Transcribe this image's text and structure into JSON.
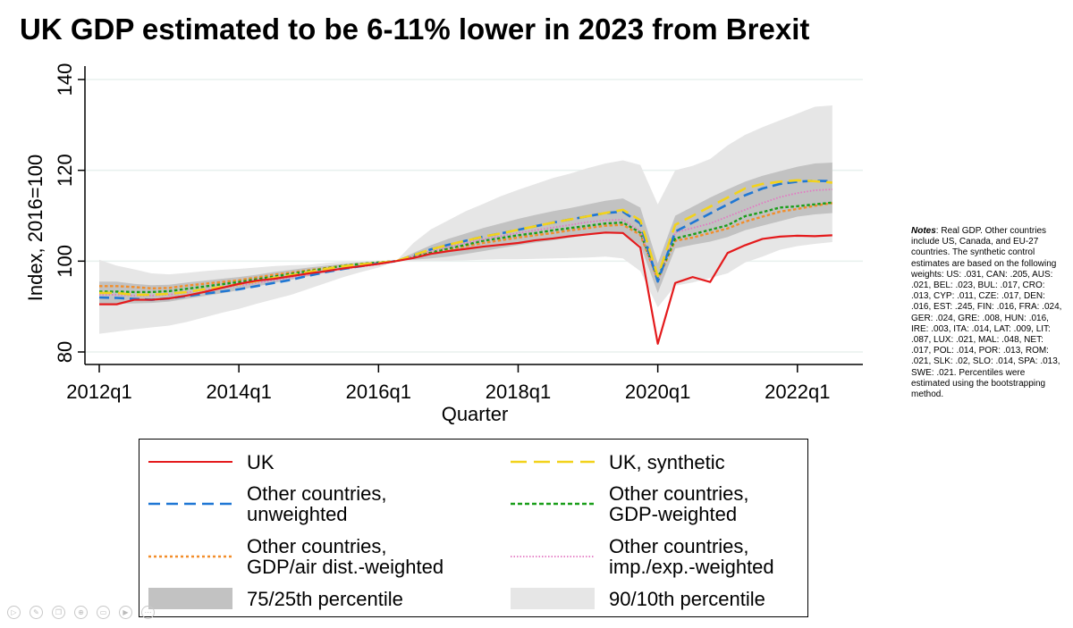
{
  "title": "UK GDP estimated to be 6-11% lower in 2023 from Brexit",
  "chart_data": {
    "type": "line",
    "title": "UK GDP estimated to be 6-11% lower in 2023 from Brexit",
    "xlabel": "Quarter",
    "ylabel": "Index, 2016=100",
    "ylim": [
      80,
      140
    ],
    "yticks": [
      80,
      100,
      120,
      140
    ],
    "xticks": [
      {
        "q": 0,
        "label": "2012q1"
      },
      {
        "q": 8,
        "label": "2014q1"
      },
      {
        "q": 16,
        "label": "2016q1"
      },
      {
        "q": 24,
        "label": "2018q1"
      },
      {
        "q": 32,
        "label": "2020q1"
      },
      {
        "q": 40,
        "label": "2022q1"
      }
    ],
    "grid": true,
    "x_start": "2012q1",
    "x_end": "2022q4",
    "series": [
      {
        "key": "uk",
        "name": "UK",
        "color": "#e41a1c",
        "style": "solid",
        "values": [
          90.5,
          90.5,
          91.5,
          91.5,
          91.8,
          92.4,
          93.2,
          94.1,
          95.0,
          95.7,
          96.1,
          96.7,
          97.3,
          97.8,
          98.4,
          98.9,
          99.4,
          100.0,
          100.7,
          101.6,
          102.2,
          102.7,
          103.2,
          103.6,
          104.0,
          104.6,
          105.0,
          105.5,
          105.9,
          106.3,
          106.2,
          103.0,
          81.8,
          95.2,
          96.5,
          95.4,
          101.8,
          103.5,
          104.9,
          105.4,
          105.6,
          105.5,
          105.7
        ]
      },
      {
        "key": "synthetic",
        "name": "UK, synthetic",
        "color": "#f2d21b",
        "style": "longdash",
        "values": [
          93.0,
          93.0,
          92.6,
          92.6,
          92.8,
          93.2,
          93.8,
          94.3,
          94.9,
          95.6,
          96.3,
          96.9,
          97.6,
          98.3,
          98.9,
          99.3,
          99.6,
          100.0,
          101.3,
          102.6,
          103.6,
          104.5,
          105.4,
          106.1,
          106.9,
          107.7,
          108.5,
          109.2,
          109.9,
          110.6,
          111.3,
          109.0,
          96.7,
          108.0,
          110.0,
          112.0,
          114.0,
          116.0,
          117.0,
          117.5,
          117.8,
          117.6,
          117.3
        ]
      },
      {
        "key": "unweighted",
        "name": "Other countries, unweighted",
        "color": "#1f77d4",
        "style": "dash",
        "values": [
          92.0,
          91.9,
          91.7,
          91.5,
          91.8,
          92.3,
          92.8,
          93.3,
          93.8,
          94.5,
          95.2,
          95.9,
          96.8,
          97.6,
          98.3,
          98.9,
          99.5,
          100.0,
          101.3,
          102.6,
          103.6,
          104.5,
          105.4,
          106.1,
          106.9,
          107.7,
          108.5,
          109.2,
          109.9,
          110.6,
          110.9,
          108.3,
          95.5,
          106.5,
          108.5,
          110.5,
          112.5,
          114.5,
          116.0,
          117.0,
          117.5,
          117.7,
          117.6
        ]
      },
      {
        "key": "gdp_weighted",
        "name": "Other countries, GDP-weighted",
        "color": "#1a9e1a",
        "style": "dot",
        "values": [
          93.3,
          93.3,
          93.2,
          93.2,
          93.4,
          93.9,
          94.4,
          94.9,
          95.4,
          96.0,
          96.6,
          97.2,
          97.8,
          98.4,
          99.0,
          99.4,
          99.7,
          100.0,
          100.9,
          101.9,
          102.8,
          103.6,
          104.5,
          105.1,
          105.7,
          106.2,
          106.8,
          107.3,
          107.8,
          108.3,
          108.5,
          106.3,
          96.3,
          105.0,
          105.9,
          106.9,
          107.9,
          109.9,
          110.8,
          111.8,
          112.1,
          112.5,
          112.9
        ]
      },
      {
        "key": "air_dist",
        "name": "Other countries, GDP/air dist.-weighted",
        "color": "#f28e2b",
        "style": "dot",
        "values": [
          94.5,
          94.5,
          94.3,
          94.0,
          94.1,
          94.6,
          95.0,
          95.4,
          95.8,
          96.4,
          97.0,
          97.5,
          98.0,
          98.5,
          99.0,
          99.4,
          99.7,
          100.0,
          100.9,
          101.8,
          102.6,
          103.3,
          104.0,
          104.6,
          105.2,
          105.7,
          106.2,
          106.8,
          107.3,
          107.8,
          108.0,
          105.8,
          95.9,
          104.5,
          105.2,
          106.2,
          107.2,
          108.7,
          109.8,
          110.9,
          111.5,
          112.2,
          112.8
        ]
      },
      {
        "key": "imp_exp",
        "name": "Other countries, imp./exp.-weighted",
        "color": "#e377c2",
        "style": "finedot",
        "values": [
          92.6,
          92.6,
          92.4,
          92.4,
          92.6,
          93.1,
          93.6,
          94.1,
          94.6,
          95.2,
          95.8,
          96.4,
          97.0,
          97.7,
          98.3,
          98.8,
          99.3,
          100.0,
          101.1,
          102.2,
          103.1,
          104.0,
          104.8,
          105.5,
          106.2,
          106.8,
          107.4,
          108.0,
          108.6,
          109.0,
          109.1,
          106.6,
          95.5,
          106.3,
          107.3,
          108.3,
          109.8,
          111.3,
          112.8,
          114.1,
          115.0,
          115.6,
          115.8
        ]
      }
    ],
    "bands": [
      {
        "key": "p90_10",
        "name": "90/10th percentile",
        "color": "#e6e6e6",
        "upper": [
          100.3,
          99.0,
          98.2,
          97.3,
          97.1,
          97.4,
          97.8,
          98.1,
          98.3,
          98.6,
          98.9,
          99.1,
          99.2,
          99.6,
          99.9,
          100.0,
          100.1,
          100.0,
          104.0,
          107.0,
          109.0,
          111.0,
          112.6,
          114.3,
          115.7,
          117.0,
          118.3,
          119.3,
          120.5,
          121.5,
          122.2,
          121.2,
          112.5,
          120.0,
          121.0,
          122.5,
          125.5,
          127.8,
          129.5,
          131.0,
          132.5,
          134.0,
          134.3
        ],
        "lower": [
          84.0,
          84.5,
          85.0,
          85.4,
          85.8,
          86.6,
          87.6,
          88.6,
          89.5,
          90.6,
          91.6,
          92.6,
          93.9,
          95.2,
          96.5,
          97.6,
          98.6,
          100.0,
          100.0,
          100.1,
          100.1,
          100.2,
          100.3,
          100.4,
          100.4,
          100.5,
          100.6,
          100.7,
          100.8,
          101.0,
          100.6,
          97.8,
          89.8,
          94.6,
          95.3,
          96.3,
          97.3,
          99.7,
          101.0,
          102.5,
          103.3,
          103.8,
          104.2
        ]
      },
      {
        "key": "p75_25",
        "name": "75/25th percentile",
        "color": "#c2c2c2",
        "upper": [
          95.5,
          95.5,
          95.0,
          94.7,
          94.8,
          95.3,
          95.7,
          96.1,
          96.5,
          97.0,
          97.6,
          98.1,
          98.6,
          99.0,
          99.4,
          99.7,
          99.9,
          100.0,
          101.8,
          103.5,
          104.9,
          106.1,
          107.3,
          108.3,
          109.3,
          110.2,
          111.0,
          111.7,
          112.5,
          113.3,
          113.8,
          111.8,
          99.5,
          110.0,
          112.0,
          114.0,
          115.8,
          117.5,
          118.8,
          119.8,
          120.8,
          121.5,
          121.7
        ],
        "lower": [
          90.5,
          90.6,
          90.7,
          90.8,
          91.1,
          91.7,
          92.3,
          92.9,
          93.6,
          94.4,
          95.2,
          95.9,
          96.7,
          97.5,
          98.3,
          98.9,
          99.4,
          100.0,
          100.3,
          100.6,
          101.0,
          101.6,
          102.2,
          102.9,
          103.5,
          104.1,
          104.6,
          105.2,
          105.8,
          106.4,
          106.0,
          103.5,
          93.0,
          102.8,
          103.6,
          104.3,
          105.3,
          106.8,
          107.8,
          108.8,
          109.8,
          110.3,
          110.6
        ]
      }
    ]
  },
  "notes": {
    "label": "Notes",
    "text": ": Real GDP. Other countries include US, Canada, and EU-27 countries. The synthetic control estimates are based on the following weights: US: .031, CAN: .205, AUS: .021, BEL: .023, BUL: .017, CRO: .013, CYP: .011, CZE: .017, DEN: .016, EST: .245, FIN: .016, FRA: .024, GER: .024, GRE: .008, HUN: .016, IRE: .003, ITA: .014, LAT: .009, LIT: .087, LUX: .021, MAL: .048, NET: .017, POL: .014, POR: .013, ROM: .021, SLK: .02, SLO: .014, SPA: .013, SWE: .021. Percentiles were estimated using the bootstrapping method."
  },
  "legend": {
    "uk": [
      "UK"
    ],
    "synthetic": [
      "UK, synthetic"
    ],
    "unweighted": [
      "Other countries,",
      "unweighted"
    ],
    "gdp_weighted": [
      "Other countries,",
      "GDP-weighted"
    ],
    "air_dist": [
      "Other countries,",
      "GDP/air dist.-weighted"
    ],
    "imp_exp": [
      "Other countries,",
      "imp./exp.-weighted"
    ],
    "p75_25": [
      "75/25th percentile"
    ],
    "p90_10": [
      "90/10th percentile"
    ]
  },
  "toolbar_icons": [
    "play-icon",
    "edit-icon",
    "copy-icon",
    "zoom-icon",
    "fullscreen-icon",
    "video-icon",
    "more-icon"
  ]
}
